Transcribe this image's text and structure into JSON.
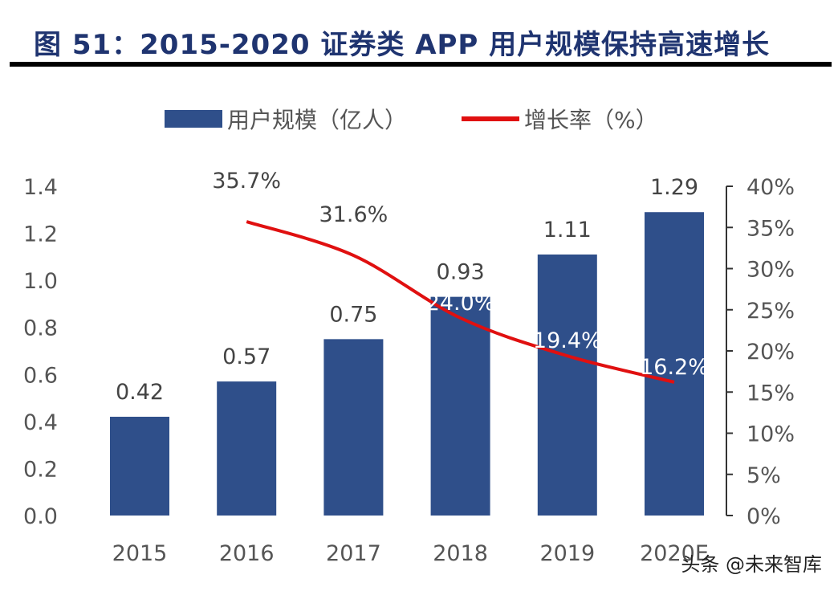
{
  "chart_data": {
    "type": "bar+line",
    "title": "图 51：2015-2020 证券类 APP 用户规模保持高速增长",
    "categories": [
      "2015",
      "2016",
      "2017",
      "2018",
      "2019",
      "2020E"
    ],
    "series": [
      {
        "name": "用户规模（亿人）",
        "type": "bar",
        "axis": "left",
        "color": "#2f4f8a",
        "values": [
          0.42,
          0.57,
          0.75,
          0.93,
          1.11,
          1.29
        ],
        "labels": [
          "0.42",
          "0.57",
          "0.75",
          "0.93",
          "1.11",
          "1.29"
        ]
      },
      {
        "name": "增长率（%）",
        "type": "line",
        "axis": "right",
        "color": "#e01010",
        "values": [
          null,
          35.7,
          31.6,
          24.0,
          19.4,
          16.2
        ],
        "labels": [
          "",
          "35.7%",
          "31.6%",
          "24.0%",
          "19.4%",
          "16.2%"
        ]
      }
    ],
    "y_left": {
      "range": [
        0,
        1.4
      ],
      "ticks": [
        "0.0",
        "0.2",
        "0.4",
        "0.6",
        "0.8",
        "1.0",
        "1.2",
        "1.4"
      ]
    },
    "y_right": {
      "range": [
        0,
        40
      ],
      "ticks": [
        "0%",
        "5%",
        "10%",
        "15%",
        "20%",
        "25%",
        "30%",
        "35%",
        "40%"
      ]
    },
    "grid": false,
    "legend_position": "top"
  },
  "watermark": "头条 @未来智库"
}
